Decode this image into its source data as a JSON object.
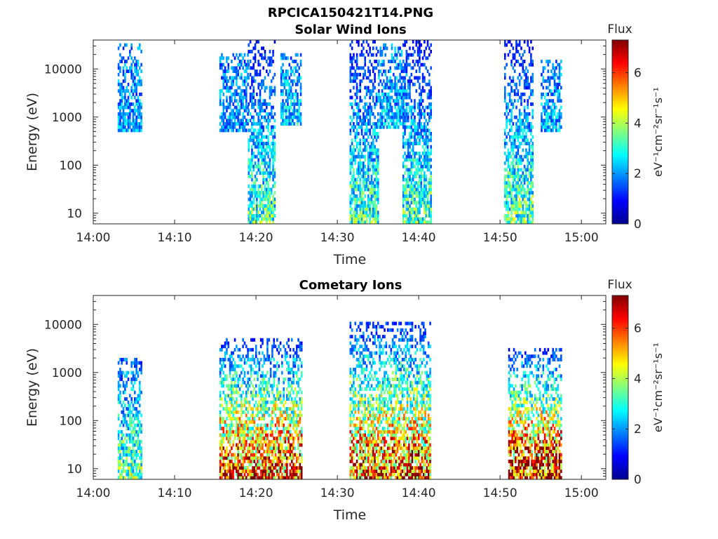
{
  "figure": {
    "title": "RPCICA150421T14.PNG"
  },
  "chart_data": [
    {
      "type": "heatmap",
      "title": "Solar Wind Ions",
      "xlabel": "Time",
      "ylabel": "Energy (eV)",
      "x_range": [
        "14:00",
        "15:03"
      ],
      "x_ticks": [
        "14:00",
        "14:10",
        "14:20",
        "14:30",
        "14:40",
        "14:50",
        "15:00"
      ],
      "y_scale": "log",
      "y_range": [
        6,
        40000
      ],
      "y_ticks": [
        "10",
        "100",
        "1000",
        "10000"
      ],
      "colorbar": {
        "label": "Flux",
        "unit": "eV⁻¹cm⁻²sr⁻¹s⁻¹",
        "range": [
          0,
          7.3
        ],
        "ticks": [
          "0",
          "2",
          "4",
          "6"
        ],
        "colormap": "jet"
      },
      "blocks": [
        {
          "start_min": 3.0,
          "end_min": 6.0,
          "emin": 500,
          "emax": 30000,
          "level_low": 2.0,
          "level_high": 1.8
        },
        {
          "start_min": 15.5,
          "end_min": 19.0,
          "emin": 500,
          "emax": 20000,
          "level_low": 2.0,
          "level_high": 1.8
        },
        {
          "start_min": 19.0,
          "end_min": 22.3,
          "emin": 6,
          "emax": 35000,
          "level_low": 3.2,
          "level_high": 1.0
        },
        {
          "start_min": 23.0,
          "end_min": 25.5,
          "emin": 700,
          "emax": 20000,
          "level_low": 2.4,
          "level_high": 1.8
        },
        {
          "start_min": 31.5,
          "end_min": 35.0,
          "emin": 6,
          "emax": 35000,
          "level_low": 3.2,
          "level_high": 1.0
        },
        {
          "start_min": 35.0,
          "end_min": 38.5,
          "emin": 600,
          "emax": 30000,
          "level_low": 2.2,
          "level_high": 1.8
        },
        {
          "start_min": 38.0,
          "end_min": 41.5,
          "emin": 6,
          "emax": 35000,
          "level_low": 3.2,
          "level_high": 1.0
        },
        {
          "start_min": 50.5,
          "end_min": 54.0,
          "emin": 6,
          "emax": 35000,
          "level_low": 3.4,
          "level_high": 1.0
        },
        {
          "start_min": 55.0,
          "end_min": 57.5,
          "emin": 500,
          "emax": 15000,
          "level_low": 2.2,
          "level_high": 1.8
        }
      ]
    },
    {
      "type": "heatmap",
      "title": "Cometary Ions",
      "xlabel": "Time",
      "ylabel": "Energy (eV)",
      "x_range": [
        "14:00",
        "15:03"
      ],
      "x_ticks": [
        "14:00",
        "14:10",
        "14:20",
        "14:30",
        "14:40",
        "14:50",
        "15:00"
      ],
      "y_scale": "log",
      "y_range": [
        6,
        40000
      ],
      "y_ticks": [
        "10",
        "100",
        "1000",
        "10000"
      ],
      "colorbar": {
        "label": "Flux",
        "unit": "eV⁻¹cm⁻²sr⁻¹s⁻¹",
        "range": [
          0,
          7.3
        ],
        "ticks": [
          "0",
          "2",
          "4",
          "6"
        ],
        "colormap": "jet"
      },
      "blocks": [
        {
          "start_min": 3.0,
          "end_min": 6.0,
          "emin": 6,
          "emax": 2000,
          "level_low": 3.5,
          "level_high": 1.5
        },
        {
          "start_min": 15.5,
          "end_min": 25.5,
          "emin": 6,
          "emax": 5000,
          "level_low": 6.2,
          "level_high": 1.2
        },
        {
          "start_min": 31.5,
          "end_min": 41.5,
          "emin": 6,
          "emax": 10000,
          "level_low": 6.0,
          "level_high": 1.2
        },
        {
          "start_min": 51.0,
          "end_min": 57.5,
          "emin": 6,
          "emax": 3000,
          "level_low": 6.8,
          "level_high": 1.2
        }
      ]
    }
  ]
}
